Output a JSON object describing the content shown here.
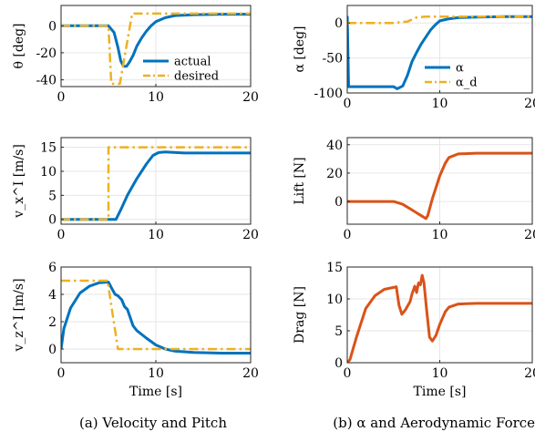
{
  "colors": {
    "actual": "#0072BD",
    "desired": "#EDB120",
    "force": "#D95319",
    "grid": "#e6e6e6"
  },
  "captions": {
    "a": "(a) Velocity and Pitch",
    "b": "(b) α and Aerodynamic Forces"
  },
  "chart_data": [
    {
      "type": "line",
      "panel": "theta",
      "ylabel": "θ [deg]",
      "xlabel": "",
      "xlim": [
        0,
        20
      ],
      "ylim": [
        -45,
        15
      ],
      "xticks": [
        0,
        10,
        20
      ],
      "yticks": [
        -40,
        -20,
        0
      ],
      "grid": true,
      "legend_position": "right",
      "series": [
        {
          "name": "actual",
          "style": "solid",
          "points": [
            [
              0,
              0
            ],
            [
              5,
              0
            ],
            [
              5.6,
              -5
            ],
            [
              6.0,
              -16
            ],
            [
              6.3,
              -26
            ],
            [
              6.6,
              -30
            ],
            [
              6.9,
              -30
            ],
            [
              7.2,
              -27
            ],
            [
              7.6,
              -22
            ],
            [
              8,
              -15
            ],
            [
              8.5,
              -9
            ],
            [
              9,
              -4
            ],
            [
              9.5,
              0
            ],
            [
              10,
              3
            ],
            [
              11,
              6
            ],
            [
              12,
              7.5
            ],
            [
              14,
              8.2
            ],
            [
              17,
              8.5
            ],
            [
              20,
              8.5
            ]
          ]
        },
        {
          "name": "desired",
          "style": "dashdot",
          "points": [
            [
              0,
              0
            ],
            [
              5,
              0
            ],
            [
              5.3,
              -43
            ],
            [
              6.2,
              -43
            ],
            [
              7.5,
              9
            ],
            [
              20,
              9
            ]
          ]
        }
      ]
    },
    {
      "type": "line",
      "panel": "vx",
      "ylabel": "v_x^I [m/s]",
      "xlabel": "",
      "xlim": [
        0,
        20
      ],
      "ylim": [
        -1,
        17
      ],
      "xticks": [
        0,
        10,
        20
      ],
      "yticks": [
        0,
        5,
        10,
        15
      ],
      "grid": true,
      "series": [
        {
          "name": "actual",
          "style": "solid",
          "points": [
            [
              0,
              0
            ],
            [
              5,
              0
            ],
            [
              5.8,
              0
            ],
            [
              6.3,
              2
            ],
            [
              7,
              5
            ],
            [
              8,
              8.5
            ],
            [
              9,
              11.5
            ],
            [
              9.7,
              13.3
            ],
            [
              10.3,
              13.9
            ],
            [
              11,
              14
            ],
            [
              13,
              13.8
            ],
            [
              20,
              13.8
            ]
          ]
        },
        {
          "name": "desired",
          "style": "dashdot",
          "points": [
            [
              0,
              0
            ],
            [
              5,
              0
            ],
            [
              5,
              15
            ],
            [
              20,
              15
            ]
          ]
        }
      ]
    },
    {
      "type": "line",
      "panel": "vz",
      "ylabel": "v_z^I [m/s]",
      "xlabel": "Time [s]",
      "xlim": [
        0,
        20
      ],
      "ylim": [
        -1,
        6
      ],
      "xticks": [
        0,
        10,
        20
      ],
      "yticks": [
        0,
        2,
        4,
        6
      ],
      "grid": true,
      "series": [
        {
          "name": "actual",
          "style": "solid",
          "points": [
            [
              0,
              0
            ],
            [
              0.3,
              1.5
            ],
            [
              1,
              3
            ],
            [
              2,
              4.1
            ],
            [
              3,
              4.6
            ],
            [
              4,
              4.85
            ],
            [
              5,
              4.9
            ],
            [
              5.3,
              4.5
            ],
            [
              5.7,
              4
            ],
            [
              6,
              3.9
            ],
            [
              6.4,
              3.6
            ],
            [
              6.7,
              3.1
            ],
            [
              7,
              2.9
            ],
            [
              7.3,
              2.3
            ],
            [
              7.6,
              1.7
            ],
            [
              8,
              1.35
            ],
            [
              9,
              0.8
            ],
            [
              10,
              0.3
            ],
            [
              11,
              0
            ],
            [
              12,
              -0.15
            ],
            [
              14,
              -0.25
            ],
            [
              17,
              -0.3
            ],
            [
              20,
              -0.3
            ]
          ]
        },
        {
          "name": "desired",
          "style": "dashdot",
          "points": [
            [
              0,
              5
            ],
            [
              4.9,
              5
            ],
            [
              6,
              0
            ],
            [
              20,
              0
            ]
          ]
        }
      ]
    },
    {
      "type": "line",
      "panel": "alpha",
      "ylabel": "α [deg]",
      "xlabel": "",
      "xlim": [
        0,
        20
      ],
      "ylim": [
        -100,
        25
      ],
      "xticks": [
        0,
        10,
        20
      ],
      "yticks": [
        -100,
        -50,
        0
      ],
      "grid": true,
      "legend_position": "right",
      "series": [
        {
          "name": "α",
          "style": "solid",
          "points": [
            [
              0,
              10
            ],
            [
              0.15,
              -91
            ],
            [
              5,
              -91
            ],
            [
              5.4,
              -94
            ],
            [
              6,
              -90
            ],
            [
              6.5,
              -75
            ],
            [
              7,
              -55
            ],
            [
              7.5,
              -42
            ],
            [
              8,
              -30
            ],
            [
              8.5,
              -20
            ],
            [
              9,
              -10
            ],
            [
              9.5,
              -3
            ],
            [
              10,
              3
            ],
            [
              11,
              6
            ],
            [
              12,
              7.5
            ],
            [
              14,
              8.5
            ],
            [
              17,
              9
            ],
            [
              20,
              9
            ]
          ]
        },
        {
          "name": "α_d",
          "style": "dashdot",
          "points": [
            [
              0,
              0
            ],
            [
              5,
              0
            ],
            [
              6.5,
              2
            ],
            [
              7.5,
              8
            ],
            [
              8.5,
              9
            ],
            [
              20,
              9
            ]
          ]
        }
      ]
    },
    {
      "type": "line",
      "panel": "lift",
      "ylabel": "Lift [N]",
      "xlabel": "",
      "xlim": [
        0,
        20
      ],
      "ylim": [
        -16,
        45
      ],
      "xticks": [
        0,
        10,
        20
      ],
      "yticks": [
        0,
        20,
        40
      ],
      "grid": true,
      "series": [
        {
          "name": "",
          "style": "solid",
          "points": [
            [
              0,
              0
            ],
            [
              5,
              0
            ],
            [
              5.5,
              -1
            ],
            [
              6,
              -2
            ],
            [
              6.5,
              -4
            ],
            [
              7,
              -6
            ],
            [
              7.5,
              -8
            ],
            [
              8,
              -10
            ],
            [
              8.5,
              -12
            ],
            [
              8.7,
              -10
            ],
            [
              9.2,
              2
            ],
            [
              10,
              18
            ],
            [
              10.6,
              27
            ],
            [
              11,
              31
            ],
            [
              12,
              33.5
            ],
            [
              14,
              34
            ],
            [
              17,
              34
            ],
            [
              20,
              34
            ]
          ]
        }
      ]
    },
    {
      "type": "line",
      "panel": "drag",
      "ylabel": "Drag [N]",
      "xlabel": "Time [s]",
      "xlim": [
        0,
        20
      ],
      "ylim": [
        0,
        15
      ],
      "xticks": [
        0,
        10,
        20
      ],
      "yticks": [
        0,
        5,
        10,
        15
      ],
      "grid": true,
      "series": [
        {
          "name": "",
          "style": "solid",
          "points": [
            [
              0,
              0
            ],
            [
              0.3,
              0.5
            ],
            [
              1,
              4
            ],
            [
              2,
              8.5
            ],
            [
              3,
              10.5
            ],
            [
              4,
              11.5
            ],
            [
              5,
              11.8
            ],
            [
              5.3,
              11.9
            ],
            [
              5.6,
              9
            ],
            [
              5.9,
              7.6
            ],
            [
              6.3,
              8.3
            ],
            [
              6.8,
              9.6
            ],
            [
              7,
              10.8
            ],
            [
              7.3,
              12
            ],
            [
              7.5,
              11
            ],
            [
              7.7,
              12.5
            ],
            [
              7.9,
              12.2
            ],
            [
              8.1,
              13.7
            ],
            [
              8.3,
              12.5
            ],
            [
              8.6,
              8
            ],
            [
              8.9,
              4
            ],
            [
              9.2,
              3.4
            ],
            [
              9.6,
              4.3
            ],
            [
              10,
              6
            ],
            [
              10.6,
              8
            ],
            [
              11,
              8.7
            ],
            [
              12,
              9.2
            ],
            [
              14,
              9.3
            ],
            [
              17,
              9.3
            ],
            [
              20,
              9.3
            ]
          ]
        }
      ]
    }
  ]
}
